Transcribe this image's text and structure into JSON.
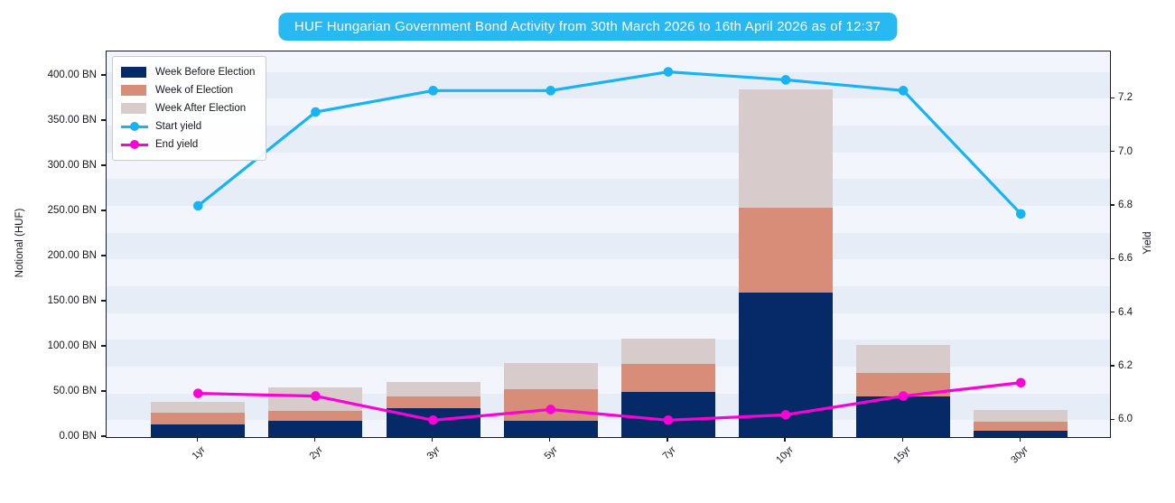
{
  "title": "HUF Hungarian Government Bond Activity from 30th March 2026 to 16th April 2026 as of 12:37",
  "colors": {
    "title_bg": "#29b9f2",
    "band_light": "#f2f6fc",
    "band_dark": "#e7edf7",
    "axis": "#1a1a24"
  },
  "chart_data": {
    "type": "bar",
    "subtype": "stacked-bar-with-lines",
    "title": "HUF Hungarian Government Bond Activity from 30th March 2026 to 16th April 2026 as of 12:37",
    "categories": [
      "1yr",
      "2yr",
      "3yr",
      "5yr",
      "7yr",
      "10yr",
      "15yr",
      "30yr"
    ],
    "bar_series": [
      {
        "name": "Week Before Election",
        "color": "#062a68",
        "values": [
          14,
          18,
          32,
          18,
          50,
          160,
          45,
          7
        ]
      },
      {
        "name": "Week of Election",
        "color": "#d78d78",
        "values": [
          13,
          11,
          13,
          35,
          31,
          94,
          26,
          10
        ]
      },
      {
        "name": "Week After Election",
        "color": "#d7cccb",
        "values": [
          12,
          26,
          16,
          29,
          28,
          131,
          31,
          13
        ]
      }
    ],
    "line_series": [
      {
        "name": "Start yield",
        "color": "#17b3f2",
        "values": [
          6.8,
          7.15,
          7.23,
          7.23,
          7.3,
          7.27,
          7.23,
          6.77
        ]
      },
      {
        "name": "End yield",
        "color": "#fb00d7",
        "values": [
          6.1,
          6.09,
          6.0,
          6.04,
          6.0,
          6.02,
          6.09,
          6.14
        ]
      }
    ],
    "y_left": {
      "label": "Notional (HUF)",
      "tick_labels": [
        "0.00 BN",
        "50.00 BN",
        "100.00 BN",
        "150.00 BN",
        "200.00 BN",
        "250.00 BN",
        "300.00 BN",
        "350.00 BN",
        "400.00 BN"
      ],
      "tick_values": [
        0,
        50,
        100,
        150,
        200,
        250,
        300,
        350,
        400
      ],
      "axis_max": 427
    },
    "y_right": {
      "label": "Yield",
      "tick_labels": [
        "6.0",
        "6.2",
        "6.4",
        "6.6",
        "6.8",
        "7.0",
        "7.2"
      ],
      "tick_values": [
        6.0,
        6.2,
        6.4,
        6.6,
        6.8,
        7.0,
        7.2
      ],
      "range": [
        5.937,
        7.376
      ],
      "band_interval": 0.1
    },
    "legend_position": "upper-left",
    "grid": "horizontal-bands"
  }
}
